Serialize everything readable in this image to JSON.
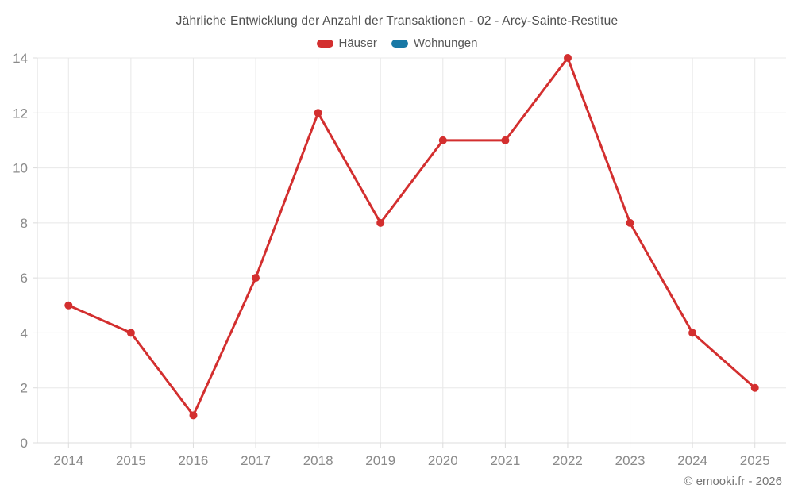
{
  "chart": {
    "title": "Jährliche Entwicklung der Anzahl der Transaktionen - 02 - Arcy-Sainte-Restitue"
  },
  "chart_data": {
    "type": "line",
    "title": "Jährliche Entwicklung der Anzahl der Transaktionen - 02 - Arcy-Sainte-Restitue",
    "categories": [
      "2014",
      "2015",
      "2016",
      "2017",
      "2018",
      "2019",
      "2020",
      "2021",
      "2022",
      "2023",
      "2024",
      "2025"
    ],
    "series": [
      {
        "name": "Häuser",
        "color": "#d32f2f",
        "values": [
          5,
          4,
          1,
          6,
          12,
          8,
          11,
          11,
          14,
          8,
          4,
          2
        ]
      },
      {
        "name": "Wohnungen",
        "color": "#1878a5",
        "values": []
      }
    ],
    "xlabel": "",
    "ylabel": "",
    "ylim": [
      0,
      14
    ],
    "y_ticks": [
      0,
      2,
      4,
      6,
      8,
      10,
      12,
      14
    ],
    "grid": true,
    "legend_position": "top"
  },
  "footer": {
    "credit": "© emooki.fr - 2026"
  },
  "colors": {
    "grid": "#e8e8e8",
    "axis_border": "#dcdcdc",
    "tick_label": "#8a8a8a",
    "title_text": "#4f4f4f",
    "legend_text": "#565656"
  }
}
